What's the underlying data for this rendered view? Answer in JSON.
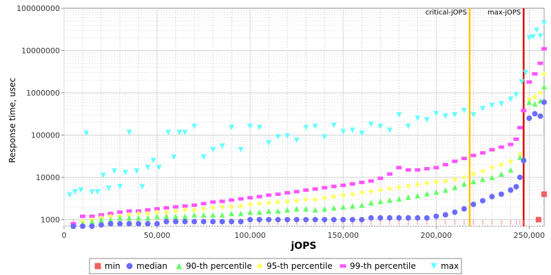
{
  "chart_data": {
    "type": "scatter",
    "xlabel": "jOPS",
    "ylabel": "Response time, usec",
    "y_scale": "log",
    "xlim": [
      0,
      258000
    ],
    "ylim": [
      700,
      100000000
    ],
    "x_ticks": [
      0,
      50000,
      100000,
      150000,
      200000,
      250000
    ],
    "x_tick_labels": [
      "0",
      "50,000",
      "100,000",
      "150,000",
      "200,000",
      "250,000"
    ],
    "y_ticks": [
      1000,
      10000,
      100000,
      1000000,
      10000000,
      100000000
    ],
    "y_tick_labels": [
      "1000",
      "10000",
      "100000",
      "1000000",
      "10000000",
      "100000000"
    ],
    "grid": true,
    "legend_position": "bottom",
    "markers": [
      {
        "label": "critical-jOPS",
        "x": 218000,
        "color": "#ffc000"
      },
      {
        "label": "max-jOPS",
        "x": 247000,
        "color": "#e00000"
      }
    ],
    "series": [
      {
        "name": "min",
        "shape": "square",
        "color": "#f06060",
        "points": [
          [
            255000,
            1000
          ],
          [
            258000,
            4000
          ]
        ]
      },
      {
        "name": "median",
        "shape": "circle",
        "color": "#6b6bff",
        "points": [
          [
            5000,
            700
          ],
          [
            10000,
            700
          ],
          [
            15000,
            700
          ],
          [
            20000,
            750
          ],
          [
            25000,
            800
          ],
          [
            30000,
            800
          ],
          [
            35000,
            800
          ],
          [
            40000,
            800
          ],
          [
            45000,
            800
          ],
          [
            50000,
            800
          ],
          [
            55000,
            900
          ],
          [
            60000,
            900
          ],
          [
            65000,
            900
          ],
          [
            70000,
            900
          ],
          [
            75000,
            900
          ],
          [
            80000,
            900
          ],
          [
            85000,
            900
          ],
          [
            90000,
            900
          ],
          [
            95000,
            900
          ],
          [
            100000,
            1000
          ],
          [
            105000,
            1000
          ],
          [
            110000,
            1000
          ],
          [
            115000,
            1000
          ],
          [
            120000,
            1000
          ],
          [
            125000,
            1000
          ],
          [
            130000,
            1000
          ],
          [
            135000,
            1000
          ],
          [
            140000,
            1000
          ],
          [
            145000,
            1000
          ],
          [
            150000,
            1000
          ],
          [
            155000,
            1000
          ],
          [
            160000,
            1000
          ],
          [
            165000,
            1100
          ],
          [
            170000,
            1100
          ],
          [
            175000,
            1100
          ],
          [
            180000,
            1100
          ],
          [
            185000,
            1100
          ],
          [
            190000,
            1100
          ],
          [
            195000,
            1100
          ],
          [
            200000,
            1200
          ],
          [
            205000,
            1300
          ],
          [
            210000,
            1500
          ],
          [
            215000,
            1800
          ],
          [
            220000,
            2300
          ],
          [
            225000,
            2800
          ],
          [
            230000,
            3500
          ],
          [
            235000,
            4000
          ],
          [
            240000,
            5000
          ],
          [
            243000,
            6000
          ],
          [
            245000,
            10000
          ],
          [
            247000,
            25000
          ],
          [
            250000,
            250000
          ],
          [
            253000,
            320000
          ],
          [
            256000,
            280000
          ],
          [
            258000,
            600000
          ]
        ]
      },
      {
        "name": "90-th percentile",
        "shape": "triangle",
        "color": "#66ff66",
        "points": [
          [
            5000,
            700
          ],
          [
            10000,
            800
          ],
          [
            15000,
            900
          ],
          [
            20000,
            1000
          ],
          [
            25000,
            1000
          ],
          [
            30000,
            1100
          ],
          [
            35000,
            1100
          ],
          [
            40000,
            1100
          ],
          [
            45000,
            1100
          ],
          [
            50000,
            1200
          ],
          [
            55000,
            1200
          ],
          [
            60000,
            1200
          ],
          [
            65000,
            1200
          ],
          [
            70000,
            1300
          ],
          [
            75000,
            1300
          ],
          [
            80000,
            1300
          ],
          [
            85000,
            1300
          ],
          [
            90000,
            1400
          ],
          [
            95000,
            1400
          ],
          [
            100000,
            1500
          ],
          [
            105000,
            1500
          ],
          [
            110000,
            1600
          ],
          [
            115000,
            1600
          ],
          [
            120000,
            1700
          ],
          [
            125000,
            1800
          ],
          [
            130000,
            1800
          ],
          [
            135000,
            1700
          ],
          [
            140000,
            1800
          ],
          [
            145000,
            1900
          ],
          [
            150000,
            2000
          ],
          [
            155000,
            2100
          ],
          [
            160000,
            2200
          ],
          [
            165000,
            2500
          ],
          [
            170000,
            2700
          ],
          [
            175000,
            2900
          ],
          [
            180000,
            3100
          ],
          [
            185000,
            3400
          ],
          [
            190000,
            3700
          ],
          [
            195000,
            4100
          ],
          [
            200000,
            4500
          ],
          [
            205000,
            5000
          ],
          [
            210000,
            5800
          ],
          [
            215000,
            7000
          ],
          [
            220000,
            8000
          ],
          [
            225000,
            9000
          ],
          [
            230000,
            10000
          ],
          [
            235000,
            12000
          ],
          [
            240000,
            15000
          ],
          [
            245000,
            30000
          ],
          [
            250000,
            600000
          ],
          [
            253000,
            550000
          ],
          [
            256000,
            650000
          ],
          [
            258000,
            1400000
          ]
        ]
      },
      {
        "name": "95-th percentile",
        "shape": "diamond",
        "color": "#ffff66",
        "points": [
          [
            10000,
            900
          ],
          [
            15000,
            1000
          ],
          [
            20000,
            1100
          ],
          [
            25000,
            1200
          ],
          [
            30000,
            1200
          ],
          [
            35000,
            1300
          ],
          [
            40000,
            1400
          ],
          [
            45000,
            1400
          ],
          [
            50000,
            1500
          ],
          [
            55000,
            1500
          ],
          [
            60000,
            1600
          ],
          [
            65000,
            1700
          ],
          [
            70000,
            1700
          ],
          [
            75000,
            1800
          ],
          [
            80000,
            1900
          ],
          [
            85000,
            2000
          ],
          [
            90000,
            2000
          ],
          [
            95000,
            2100
          ],
          [
            100000,
            2300
          ],
          [
            105000,
            2400
          ],
          [
            110000,
            2500
          ],
          [
            115000,
            2600
          ],
          [
            120000,
            2700
          ],
          [
            125000,
            2800
          ],
          [
            130000,
            3000
          ],
          [
            135000,
            3000
          ],
          [
            140000,
            3300
          ],
          [
            145000,
            3500
          ],
          [
            150000,
            3800
          ],
          [
            155000,
            4000
          ],
          [
            160000,
            4400
          ],
          [
            165000,
            4700
          ],
          [
            170000,
            5000
          ],
          [
            175000,
            5400
          ],
          [
            180000,
            5800
          ],
          [
            185000,
            6300
          ],
          [
            190000,
            6800
          ],
          [
            195000,
            7300
          ],
          [
            200000,
            7800
          ],
          [
            205000,
            8200
          ],
          [
            210000,
            9000
          ],
          [
            215000,
            10000
          ],
          [
            220000,
            12000
          ],
          [
            225000,
            14000
          ],
          [
            230000,
            17000
          ],
          [
            235000,
            20000
          ],
          [
            240000,
            24000
          ],
          [
            245000,
            35000
          ],
          [
            250000,
            700000
          ],
          [
            253000,
            800000
          ],
          [
            256000,
            1000000
          ],
          [
            258000,
            2800000
          ]
        ]
      },
      {
        "name": "99-th percentile",
        "shape": "bar",
        "color": "#ff55ff",
        "points": [
          [
            5000,
            800
          ],
          [
            10000,
            1200
          ],
          [
            15000,
            1200
          ],
          [
            20000,
            1300
          ],
          [
            25000,
            1400
          ],
          [
            30000,
            1500
          ],
          [
            35000,
            1600
          ],
          [
            40000,
            1600
          ],
          [
            45000,
            1700
          ],
          [
            50000,
            1800
          ],
          [
            55000,
            1900
          ],
          [
            60000,
            2000
          ],
          [
            65000,
            2100
          ],
          [
            70000,
            2200
          ],
          [
            75000,
            2400
          ],
          [
            80000,
            2600
          ],
          [
            85000,
            2700
          ],
          [
            90000,
            2900
          ],
          [
            95000,
            3100
          ],
          [
            100000,
            3300
          ],
          [
            105000,
            3500
          ],
          [
            110000,
            3800
          ],
          [
            115000,
            4000
          ],
          [
            120000,
            4300
          ],
          [
            125000,
            4600
          ],
          [
            130000,
            5000
          ],
          [
            135000,
            5300
          ],
          [
            140000,
            5700
          ],
          [
            145000,
            6100
          ],
          [
            150000,
            6500
          ],
          [
            155000,
            7000
          ],
          [
            160000,
            7600
          ],
          [
            165000,
            8200
          ],
          [
            170000,
            9500
          ],
          [
            175000,
            12000
          ],
          [
            180000,
            17000
          ],
          [
            185000,
            15000
          ],
          [
            190000,
            15000
          ],
          [
            195000,
            16000
          ],
          [
            200000,
            17000
          ],
          [
            205000,
            20000
          ],
          [
            210000,
            24000
          ],
          [
            215000,
            28000
          ],
          [
            220000,
            33000
          ],
          [
            225000,
            38000
          ],
          [
            230000,
            45000
          ],
          [
            235000,
            52000
          ],
          [
            240000,
            60000
          ],
          [
            243000,
            80000
          ],
          [
            245000,
            150000
          ],
          [
            247000,
            380000
          ],
          [
            250000,
            1800000
          ],
          [
            253000,
            2800000
          ],
          [
            256000,
            5000000
          ],
          [
            258000,
            11000000
          ]
        ]
      },
      {
        "name": "max",
        "shape": "triangle-down",
        "color": "#66ffff",
        "points": [
          [
            3000,
            3800
          ],
          [
            6000,
            4500
          ],
          [
            9000,
            5000
          ],
          [
            12000,
            110000
          ],
          [
            15000,
            4500
          ],
          [
            18000,
            4500
          ],
          [
            21000,
            11000
          ],
          [
            24000,
            5500
          ],
          [
            27000,
            14000
          ],
          [
            30000,
            6000
          ],
          [
            33000,
            13000
          ],
          [
            35000,
            115000
          ],
          [
            39000,
            14000
          ],
          [
            42000,
            6000
          ],
          [
            45000,
            17000
          ],
          [
            48000,
            25000
          ],
          [
            51000,
            17000
          ],
          [
            56000,
            115000
          ],
          [
            59000,
            30000
          ],
          [
            62000,
            115000
          ],
          [
            65000,
            115000
          ],
          [
            70000,
            160000
          ],
          [
            75000,
            30000
          ],
          [
            80000,
            45000
          ],
          [
            85000,
            55000
          ],
          [
            90000,
            150000
          ],
          [
            95000,
            45000
          ],
          [
            100000,
            160000
          ],
          [
            105000,
            150000
          ],
          [
            110000,
            65000
          ],
          [
            115000,
            90000
          ],
          [
            120000,
            95000
          ],
          [
            125000,
            75000
          ],
          [
            130000,
            150000
          ],
          [
            135000,
            160000
          ],
          [
            140000,
            90000
          ],
          [
            145000,
            170000
          ],
          [
            150000,
            120000
          ],
          [
            155000,
            130000
          ],
          [
            160000,
            110000
          ],
          [
            165000,
            180000
          ],
          [
            170000,
            160000
          ],
          [
            175000,
            130000
          ],
          [
            180000,
            300000
          ],
          [
            185000,
            160000
          ],
          [
            190000,
            250000
          ],
          [
            195000,
            230000
          ],
          [
            200000,
            320000
          ],
          [
            205000,
            280000
          ],
          [
            210000,
            300000
          ],
          [
            215000,
            380000
          ],
          [
            220000,
            300000
          ],
          [
            225000,
            420000
          ],
          [
            230000,
            500000
          ],
          [
            235000,
            550000
          ],
          [
            240000,
            700000
          ],
          [
            243000,
            900000
          ],
          [
            246000,
            1800000
          ],
          [
            248000,
            3000000
          ],
          [
            250000,
            20000000
          ],
          [
            252000,
            21000000
          ],
          [
            254000,
            30000000
          ],
          [
            256000,
            22000000
          ],
          [
            258000,
            45000000
          ]
        ]
      }
    ]
  }
}
